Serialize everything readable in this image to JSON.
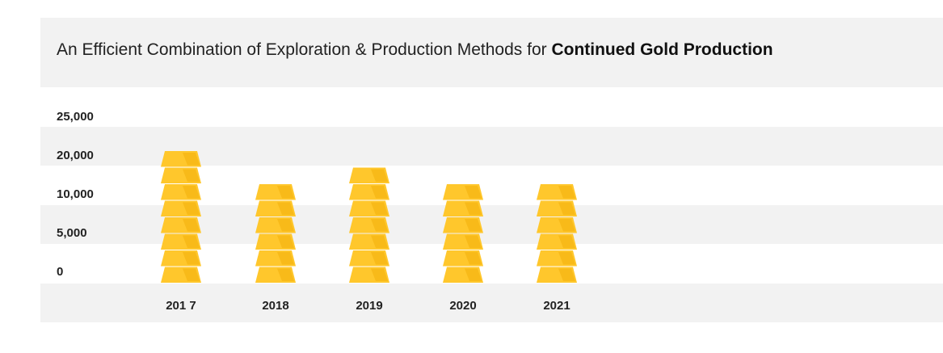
{
  "title": {
    "prefix": "An Efficient Combination of Exploration & Production Methods for ",
    "bold": "Continued Gold Production"
  },
  "colors": {
    "gold_light": "#FFC72C",
    "gold_dark": "#F2AE0B",
    "band": "#F2F2F2"
  },
  "chart_data": {
    "type": "bar",
    "title": "An Efficient Combination of Exploration & Production Methods for Continued Gold Production",
    "categories": [
      "201 7",
      "2018",
      "2019",
      "2020",
      "2021"
    ],
    "y_tick_labels": [
      "25,000",
      "20,000",
      "10,000",
      "5,000",
      "0"
    ],
    "values": [
      22000,
      12500,
      17500,
      12500,
      12500
    ],
    "bar_style": "stacked gold bar icons",
    "icon_counts": [
      8,
      6,
      7,
      6,
      6
    ],
    "grid": "alternating horizontal bands",
    "legend": "none"
  }
}
